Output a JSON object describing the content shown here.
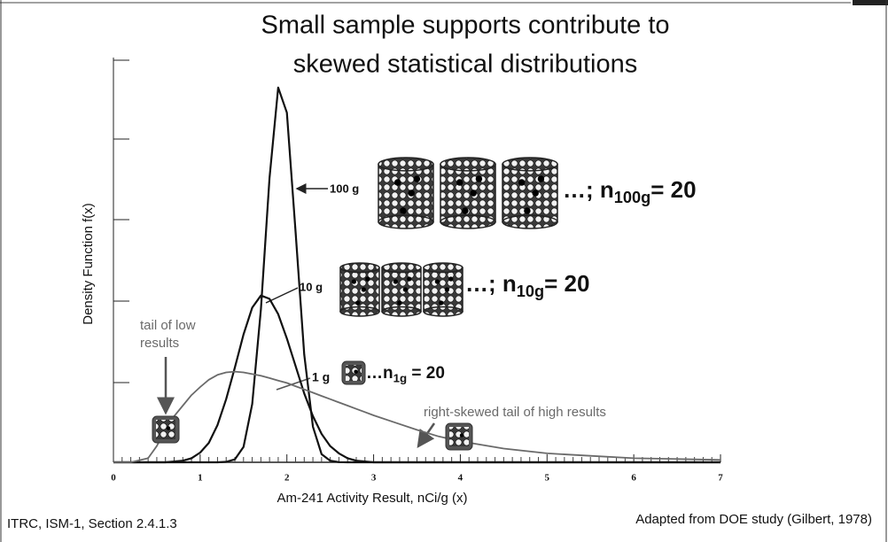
{
  "chart_data": {
    "type": "line",
    "title": [
      "Small sample supports contribute to",
      "skewed statistical distributions"
    ],
    "xlabel": "Am-241 Activity Result, nCi/g (x)",
    "ylabel": "Density Function f(x)",
    "x": [
      0,
      0.2,
      0.4,
      0.5,
      0.6,
      0.7,
      0.8,
      0.9,
      1.0,
      1.1,
      1.2,
      1.3,
      1.4,
      1.5,
      1.6,
      1.7,
      1.8,
      1.9,
      2.0,
      2.1,
      2.2,
      2.3,
      2.4,
      2.5,
      2.6,
      2.7,
      2.8,
      2.9,
      3.0,
      3.25,
      3.5,
      3.75,
      4,
      4.5,
      5,
      5.5,
      6,
      6.5,
      7
    ],
    "series": [
      {
        "name": "100 g",
        "color": "#111111",
        "values": [
          0,
          0,
          0,
          0,
          0,
          0,
          0,
          0,
          0,
          0,
          0,
          0.005,
          0.036,
          0.19,
          0.72,
          1.89,
          3.51,
          4.63,
          4.32,
          2.85,
          1.33,
          0.44,
          0.1,
          0.02,
          0.002,
          0,
          0,
          0,
          0,
          0,
          0,
          0,
          0,
          0,
          0,
          0,
          0,
          0,
          0
        ]
      },
      {
        "name": "10 g",
        "color": "#111111",
        "values": [
          0,
          0,
          0,
          0,
          0,
          0.01,
          0.02,
          0.05,
          0.12,
          0.24,
          0.46,
          0.78,
          1.17,
          1.58,
          1.91,
          2.06,
          2.02,
          1.83,
          1.53,
          1.19,
          0.85,
          0.57,
          0.35,
          0.2,
          0.11,
          0.05,
          0.02,
          0.01,
          0,
          0,
          0,
          0,
          0,
          0,
          0,
          0,
          0,
          0,
          0
        ]
      },
      {
        "name": "1 g",
        "color": "#6a6a6a",
        "values": [
          0,
          0,
          0.05,
          0.2,
          0.4,
          0.57,
          0.7,
          0.83,
          0.93,
          1.02,
          1.08,
          1.11,
          1.12,
          1.11,
          1.09,
          1.07,
          1.04,
          1.01,
          0.98,
          0.94,
          0.9,
          0.86,
          0.82,
          0.78,
          0.74,
          0.7,
          0.66,
          0.62,
          0.58,
          0.49,
          0.4,
          0.32,
          0.26,
          0.17,
          0.11,
          0.08,
          0.05,
          0.04,
          0.03
        ]
      }
    ],
    "xlim": [
      0,
      7
    ],
    "xticks": [
      0,
      1,
      2,
      3,
      4,
      5,
      6,
      7
    ],
    "ylim": [
      0,
      5
    ],
    "sample_labels": [
      {
        "prefix": "…; n",
        "sub": "100g",
        "suffix": "= 20"
      },
      {
        "prefix": "…; n",
        "sub": "10g",
        "suffix": "= 20"
      },
      {
        "prefix": "…n",
        "sub": "1g",
        "suffix": " = 20"
      }
    ],
    "annotations": [
      "tail of low",
      "results",
      "right-skewed tail of high results"
    ]
  },
  "footer": {
    "left": "ITRC, ISM-1, Section 2.4.1.3",
    "right": "Adapted from DOE study (Gilbert, 1978)"
  }
}
